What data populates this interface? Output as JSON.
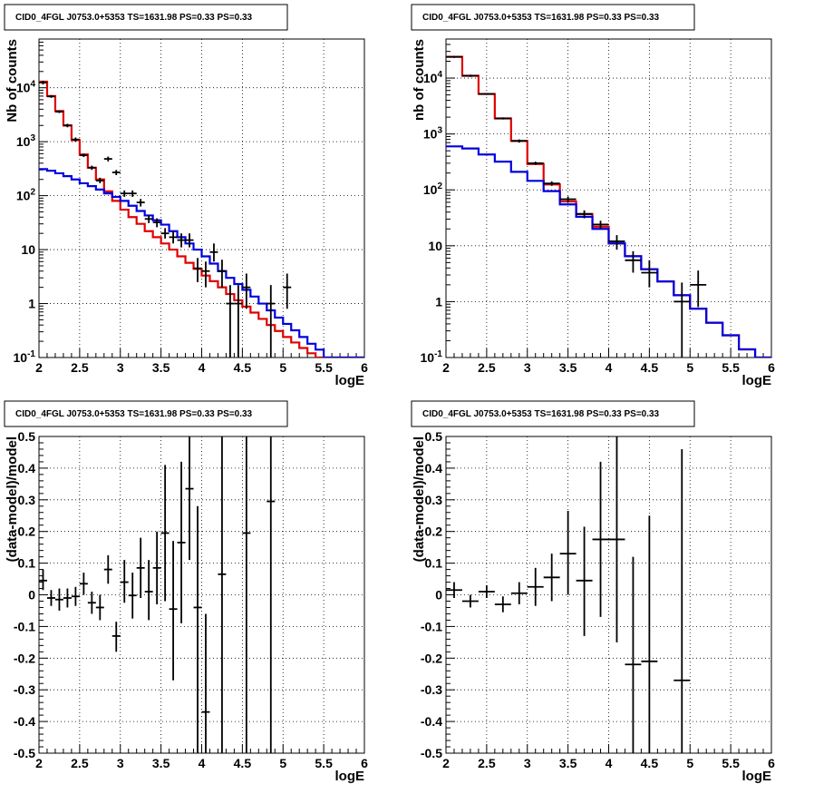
{
  "chart_data": [
    {
      "type": "line",
      "title": "CID0_4FGL J0753.0+5353 TS=1631.98 PS=0.33 PS=0.33",
      "xlabel": "logE",
      "ylabel": "Nb of counts",
      "xlim": [
        2,
        6
      ],
      "ylim": [
        0.1,
        80000
      ],
      "yscale": "log",
      "grid": true,
      "x_ticks": [
        "2",
        "2.5",
        "3",
        "3.5",
        "4",
        "4.5",
        "5",
        "5.5",
        "6"
      ],
      "y_ticks": [
        "10^-1",
        "1",
        "10",
        "10^2",
        "10^3",
        "10^4"
      ],
      "colors": {
        "model_total": "#e00000",
        "model_source": "#0000e0",
        "data": "#000000"
      },
      "series": [
        {
          "style": "step",
          "color": "#e00000",
          "bin_width": 0.1,
          "x": [
            2.05,
            2.15,
            2.25,
            2.35,
            2.45,
            2.55,
            2.65,
            2.75,
            2.85,
            2.95,
            3.05,
            3.15,
            3.25,
            3.35,
            3.45,
            3.55,
            3.65,
            3.75,
            3.85,
            3.95,
            4.05,
            4.15,
            4.25,
            4.35,
            4.45,
            4.55,
            4.65,
            4.75,
            4.85,
            4.95,
            5.05,
            5.15,
            5.25,
            5.35,
            5.45,
            5.55,
            5.65,
            5.75,
            5.85,
            5.95
          ],
          "values": [
            13000,
            7000,
            3700,
            2000,
            1070,
            580,
            330,
            200,
            120,
            80,
            55,
            40,
            30,
            22,
            17,
            13,
            10,
            7.5,
            5.7,
            4.4,
            3.3,
            2.6,
            2,
            1.5,
            1.15,
            0.88,
            0.68,
            0.52,
            0.4,
            0.31,
            0.24,
            0.19,
            0.15,
            0.12,
            0.1,
            0.1,
            0.1,
            0.1,
            0.1,
            0.1
          ]
        },
        {
          "style": "step",
          "color": "#0000e0",
          "bin_width": 0.1,
          "x": [
            2.05,
            2.15,
            2.25,
            2.35,
            2.45,
            2.55,
            2.65,
            2.75,
            2.85,
            2.95,
            3.05,
            3.15,
            3.25,
            3.35,
            3.45,
            3.55,
            3.65,
            3.75,
            3.85,
            3.95,
            4.05,
            4.15,
            4.25,
            4.35,
            4.45,
            4.55,
            4.65,
            4.75,
            4.85,
            4.95,
            5.05,
            5.15,
            5.25,
            5.35,
            5.45,
            5.55,
            5.65,
            5.75,
            5.85,
            5.95
          ],
          "values": [
            310,
            290,
            260,
            230,
            200,
            170,
            150,
            130,
            110,
            95,
            80,
            65,
            52,
            43,
            35,
            29,
            22,
            17,
            13,
            10,
            7.5,
            5.5,
            4,
            3,
            2.3,
            1.8,
            1.35,
            1,
            0.75,
            0.55,
            0.42,
            0.32,
            0.24,
            0.18,
            0.14,
            0.1,
            0.1,
            0.1,
            0.1,
            0.1
          ]
        },
        {
          "style": "errorbar",
          "color": "#000000",
          "x_half_width": 0.05,
          "points": [
            [
              2.05,
              12500,
              11500,
              13500
            ],
            [
              2.15,
              6900,
              6500,
              7300
            ],
            [
              2.25,
              3600,
              3400,
              3800
            ],
            [
              2.35,
              2000,
              1850,
              2150
            ],
            [
              2.45,
              1100,
              1000,
              1200
            ],
            [
              2.55,
              560,
              520,
              600
            ],
            [
              2.65,
              330,
              300,
              360
            ],
            [
              2.75,
              190,
              170,
              215
            ],
            [
              2.85,
              480,
              430,
              530
            ],
            [
              2.95,
              270,
              240,
              300
            ],
            [
              3.05,
              110,
              95,
              125
            ],
            [
              3.15,
              110,
              95,
              125
            ],
            [
              3.25,
              75,
              63,
              87
            ],
            [
              3.35,
              37,
              31,
              43
            ],
            [
              3.45,
              32,
              26,
              38
            ],
            [
              3.55,
              20,
              16,
              25
            ],
            [
              3.65,
              17,
              13,
              22
            ],
            [
              3.75,
              15,
              11,
              20
            ],
            [
              3.85,
              15,
              11,
              20
            ],
            [
              3.95,
              4.5,
              2.5,
              7
            ],
            [
              4.05,
              4,
              2,
              6
            ],
            [
              4.15,
              9,
              6,
              13
            ],
            [
              4.25,
              4,
              2,
              6.5
            ],
            [
              4.35,
              1,
              0.1,
              2.2
            ],
            [
              4.45,
              1,
              0.1,
              2.2
            ],
            [
              4.55,
              2,
              0.8,
              3.6
            ],
            [
              4.85,
              1,
              0.1,
              2.2
            ],
            [
              5.05,
              2,
              0.8,
              3.6
            ]
          ]
        }
      ]
    },
    {
      "type": "line",
      "title": "CID0_4FGL J0753.0+5353 TS=1631.98 PS=0.33 PS=0.33",
      "xlabel": "logE",
      "ylabel": "nb of counts",
      "xlim": [
        2,
        6
      ],
      "ylim": [
        0.1,
        50000
      ],
      "yscale": "log",
      "grid": true,
      "x_ticks": [
        "2",
        "2.5",
        "3",
        "3.5",
        "4",
        "4.5",
        "5",
        "5.5",
        "6"
      ],
      "y_ticks": [
        "10^-1",
        "1",
        "10",
        "10^2",
        "10^3",
        "10^4"
      ],
      "series": [
        {
          "style": "step",
          "color": "#e00000",
          "bin_width": 0.2,
          "x": [
            2.1,
            2.3,
            2.5,
            2.7,
            2.9,
            3.1,
            3.3,
            3.5,
            3.7,
            3.9,
            4.1,
            4.3,
            4.5,
            4.7,
            4.9,
            5.1,
            5.3,
            5.5,
            5.7,
            5.9
          ],
          "values": [
            24000,
            11000,
            5200,
            1900,
            750,
            290,
            125,
            62,
            37,
            22,
            11,
            6.5,
            3.8,
            2.3,
            1.3,
            0.75,
            0.42,
            0.25,
            0.14,
            0.1
          ]
        },
        {
          "style": "step",
          "color": "#0000e0",
          "bin_width": 0.2,
          "x": [
            2.1,
            2.3,
            2.5,
            2.7,
            2.9,
            3.1,
            3.3,
            3.5,
            3.7,
            3.9,
            4.1,
            4.3,
            4.5,
            4.7,
            4.9,
            5.1,
            5.3,
            5.5,
            5.7,
            5.9
          ],
          "values": [
            600,
            550,
            430,
            320,
            210,
            145,
            95,
            55,
            33,
            20,
            11,
            6.5,
            3.8,
            2.3,
            1.3,
            0.75,
            0.42,
            0.25,
            0.14,
            0.1
          ]
        },
        {
          "style": "errorbar",
          "color": "#000000",
          "x_half_width": 0.1,
          "points": [
            [
              2.1,
              24000,
              23000,
              25000
            ],
            [
              2.3,
              11000,
              10500,
              11500
            ],
            [
              2.5,
              5200,
              5000,
              5400
            ],
            [
              2.7,
              1900,
              1820,
              1980
            ],
            [
              2.9,
              750,
              700,
              800
            ],
            [
              3.1,
              300,
              280,
              320
            ],
            [
              3.3,
              130,
              118,
              142
            ],
            [
              3.5,
              68,
              60,
              76
            ],
            [
              3.7,
              37,
              31,
              43
            ],
            [
              3.9,
              24,
              20,
              28
            ],
            [
              4.1,
              12,
              8.5,
              15.5
            ],
            [
              4.3,
              5.5,
              3.3,
              8
            ],
            [
              4.5,
              3.3,
              1.8,
              5.5
            ],
            [
              4.9,
              1,
              0.1,
              2.2
            ],
            [
              5.1,
              2,
              0.8,
              3.6
            ]
          ]
        }
      ]
    },
    {
      "type": "scatter",
      "title": "CID0_4FGL J0753.0+5353 TS=1631.98 PS=0.33 PS=0.33",
      "xlabel": "logE",
      "ylabel": "(data-model)/model",
      "xlim": [
        2,
        6
      ],
      "ylim": [
        -0.5,
        0.5
      ],
      "grid": true,
      "x_ticks": [
        "2",
        "2.5",
        "3",
        "3.5",
        "4",
        "4.5",
        "5",
        "5.5",
        "6"
      ],
      "y_ticks": [
        "-0.5",
        "-0.4",
        "-0.3",
        "-0.2",
        "-0.1",
        "0",
        "0.1",
        "0.2",
        "0.3",
        "0.4",
        "0.5"
      ],
      "series": [
        {
          "style": "errorbar",
          "color": "#000000",
          "x_half_width": 0.05,
          "points": [
            [
              2.05,
              0.045,
              0.015,
              0.08
            ],
            [
              2.15,
              -0.01,
              -0.035,
              0.015
            ],
            [
              2.25,
              -0.015,
              -0.05,
              0.02
            ],
            [
              2.35,
              -0.01,
              -0.04,
              0.02
            ],
            [
              2.45,
              -0.005,
              -0.035,
              0.025
            ],
            [
              2.55,
              0.035,
              0.0,
              0.07
            ],
            [
              2.65,
              -0.025,
              -0.06,
              0.01
            ],
            [
              2.75,
              -0.04,
              -0.08,
              0.0
            ],
            [
              2.85,
              0.08,
              0.035,
              0.125
            ],
            [
              2.95,
              -0.13,
              -0.18,
              -0.085
            ],
            [
              3.05,
              0.04,
              -0.025,
              0.11
            ],
            [
              3.15,
              -0.002,
              -0.075,
              0.07
            ],
            [
              3.25,
              0.085,
              -0.01,
              0.18
            ],
            [
              3.35,
              0.01,
              -0.08,
              0.11
            ],
            [
              3.45,
              0.085,
              -0.03,
              0.2
            ],
            [
              3.55,
              0.195,
              -0.02,
              0.41
            ],
            [
              3.65,
              -0.045,
              -0.27,
              0.17
            ],
            [
              3.75,
              0.165,
              -0.09,
              0.42
            ],
            [
              3.85,
              0.335,
              0.11,
              0.5
            ],
            [
              3.95,
              -0.04,
              -0.5,
              0.28
            ],
            [
              4.05,
              -0.37,
              -0.5,
              -0.06
            ],
            [
              4.25,
              0.065,
              -0.5,
              0.5
            ],
            [
              4.55,
              0.195,
              -0.5,
              0.5
            ],
            [
              4.85,
              0.295,
              -0.5,
              0.5
            ]
          ]
        }
      ]
    },
    {
      "type": "scatter",
      "title": "CID0_4FGL J0753.0+5353 TS=1631.98 PS=0.33 PS=0.33",
      "xlabel": "logE",
      "ylabel": "(data-model)/model",
      "xlim": [
        2,
        6
      ],
      "ylim": [
        -0.5,
        0.5
      ],
      "grid": true,
      "x_ticks": [
        "2",
        "2.5",
        "3",
        "3.5",
        "4",
        "4.5",
        "5",
        "5.5",
        "6"
      ],
      "y_ticks": [
        "-0.5",
        "-0.4",
        "-0.3",
        "-0.2",
        "-0.1",
        "0",
        "0.1",
        "0.2",
        "0.3",
        "0.4",
        "0.5"
      ],
      "series": [
        {
          "style": "errorbar",
          "color": "#000000",
          "x_half_width": 0.1,
          "points": [
            [
              2.1,
              0.015,
              -0.01,
              0.04
            ],
            [
              2.3,
              -0.02,
              -0.04,
              0.0
            ],
            [
              2.5,
              0.01,
              -0.01,
              0.03
            ],
            [
              2.7,
              -0.03,
              -0.055,
              -0.005
            ],
            [
              2.9,
              0.005,
              -0.03,
              0.04
            ],
            [
              3.1,
              0.025,
              -0.035,
              0.085
            ],
            [
              3.3,
              0.055,
              -0.02,
              0.13
            ],
            [
              3.5,
              0.13,
              0.0,
              0.265
            ],
            [
              3.7,
              0.045,
              -0.13,
              0.215
            ],
            [
              3.9,
              0.175,
              -0.07,
              0.42
            ],
            [
              4.1,
              0.175,
              -0.15,
              0.5
            ],
            [
              4.3,
              -0.22,
              -0.5,
              0.12
            ],
            [
              4.5,
              -0.21,
              -0.5,
              0.25
            ],
            [
              4.9,
              -0.27,
              -0.5,
              0.46
            ]
          ]
        }
      ]
    }
  ]
}
